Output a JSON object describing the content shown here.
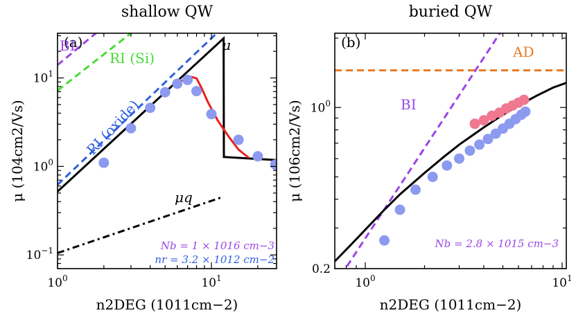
{
  "chart_data": [
    {
      "type": "scatter",
      "title": "shallow QW",
      "panel_label": "(a)",
      "xlabel": "n2DEG (1011cm−2)",
      "ylabel": "μ (104cm2/Vs)",
      "xscale": "log",
      "yscale": "log",
      "xlim": [
        1,
        26.5
      ],
      "ylim": [
        0.07,
        32
      ],
      "xticks": [
        {
          "v": 1,
          "base": "10",
          "exp": "0"
        },
        {
          "v": 10,
          "base": "10",
          "exp": "1"
        }
      ],
      "yticks": [
        {
          "v": 0.1,
          "base": "10",
          "exp": "−1"
        },
        {
          "v": 1,
          "base": "10",
          "exp": "0"
        },
        {
          "v": 10,
          "base": "10",
          "exp": "1"
        }
      ],
      "series": [
        {
          "name": "measured",
          "kind": "points",
          "color": "#8c9af0",
          "x": [
            2,
            3,
            4,
            5,
            6,
            7,
            8,
            10,
            15,
            20,
            26
          ],
          "y": [
            1.1,
            2.7,
            4.6,
            6.9,
            8.6,
            9.5,
            7.1,
            3.9,
            2.0,
            1.3,
            1.05
          ]
        },
        {
          "name": "RI (oxide)",
          "kind": "line",
          "style": "dashed",
          "color": "#2f5fe0",
          "x": [
            1,
            12
          ],
          "y": [
            0.62,
            38
          ]
        },
        {
          "name": "RI (Si)",
          "kind": "line",
          "style": "dashed",
          "color": "#44dd33",
          "x": [
            1,
            3.4
          ],
          "y": [
            7.2,
            38
          ]
        },
        {
          "name": "BI",
          "kind": "line",
          "style": "dashed",
          "color": "#9b45e6",
          "x": [
            1,
            2.0
          ],
          "y": [
            14.0,
            38
          ]
        },
        {
          "name": "μ",
          "kind": "line",
          "style": "solid",
          "color": "#000000",
          "x": [
            1,
            12,
            12,
            12.05,
            26.5
          ],
          "y": [
            0.52,
            28,
            28,
            1.28,
            1.18
          ]
        },
        {
          "name": "red fit",
          "kind": "line",
          "style": "solid",
          "color": "#e8211b",
          "x": [
            6.2,
            7.2,
            8.0,
            8.6,
            9.5,
            11,
            13,
            15,
            17.5
          ],
          "y": [
            9.0,
            10.4,
            9.9,
            7.8,
            5.3,
            3.3,
            2.15,
            1.55,
            1.25
          ]
        },
        {
          "name": "μq",
          "kind": "line",
          "style": "dashdot",
          "color": "#000000",
          "x": [
            1,
            12
          ],
          "y": [
            0.105,
            0.455
          ]
        }
      ],
      "annotations": [
        {
          "text": "BI",
          "color": "#9b45e6"
        },
        {
          "text": "RI (Si)",
          "color": "#44dd33"
        },
        {
          "text": "RI (oxide)",
          "color": "#2f5fe0"
        },
        {
          "text": "μ",
          "color": "#000000"
        },
        {
          "text": "μq",
          "color": "#000000"
        },
        {
          "text": "Nb = 1 × 1016 cm−3",
          "color": "#9b45e6"
        },
        {
          "text": "nr = 3.2 × 1012 cm−2",
          "color": "#2f5fe0"
        }
      ]
    },
    {
      "type": "scatter",
      "title": "buried QW",
      "panel_label": "(b)",
      "xlabel": "n2DEG (1011cm−2)",
      "ylabel": "μ (106cm2/Vs)",
      "xscale": "log",
      "yscale": "log",
      "xlim": [
        0.7,
        10.5
      ],
      "ylim": [
        0.2,
        2.1
      ],
      "xticks": [
        {
          "v": 1,
          "base": "10",
          "exp": "0"
        },
        {
          "v": 10,
          "base": "10",
          "exp": "1"
        }
      ],
      "yticks": [
        {
          "v": 0.2,
          "label": "0.2"
        },
        {
          "v": 1,
          "base": "10",
          "exp": "0"
        }
      ],
      "series": [
        {
          "name": "measured (blue)",
          "kind": "points",
          "color": "#8c9af0",
          "x": [
            1.25,
            1.5,
            1.8,
            2.2,
            2.6,
            3.0,
            3.4,
            3.8,
            4.2,
            4.6,
            5.0,
            5.4,
            5.8,
            6.2,
            6.5
          ],
          "y": [
            0.265,
            0.36,
            0.44,
            0.5,
            0.56,
            0.6,
            0.65,
            0.69,
            0.73,
            0.77,
            0.81,
            0.85,
            0.89,
            0.93,
            0.96
          ]
        },
        {
          "name": "measured (pink)",
          "kind": "points",
          "color": "#f07890",
          "x": [
            3.6,
            4.0,
            4.4,
            4.8,
            5.2,
            5.6,
            6.0,
            6.4
          ],
          "y": [
            0.85,
            0.88,
            0.92,
            0.95,
            0.99,
            1.02,
            1.05,
            1.08
          ]
        },
        {
          "name": "AD",
          "kind": "line",
          "style": "dashed",
          "color": "#e87a24",
          "x": [
            0.7,
            10.5
          ],
          "y": [
            1.45,
            1.45
          ]
        },
        {
          "name": "BI",
          "kind": "line",
          "style": "dashed",
          "color": "#9b45e6",
          "x": [
            0.7,
            5.0
          ],
          "y": [
            0.17,
            2.2
          ]
        },
        {
          "name": "total",
          "kind": "line",
          "style": "solid",
          "color": "#000000",
          "x": [
            0.7,
            0.85,
            1.0,
            1.25,
            1.5,
            2.0,
            2.5,
            3.0,
            4.0,
            5.0,
            6.0,
            7.5,
            9.0,
            10.5
          ],
          "y": [
            0.215,
            0.255,
            0.295,
            0.36,
            0.42,
            0.52,
            0.61,
            0.69,
            0.82,
            0.93,
            1.02,
            1.13,
            1.22,
            1.28
          ]
        }
      ],
      "annotations": [
        {
          "text": "AD",
          "color": "#e87a24"
        },
        {
          "text": "BI",
          "color": "#9b45e6"
        },
        {
          "text": "Nb = 2.8 × 1015 cm−3",
          "color": "#9b45e6"
        }
      ]
    }
  ]
}
